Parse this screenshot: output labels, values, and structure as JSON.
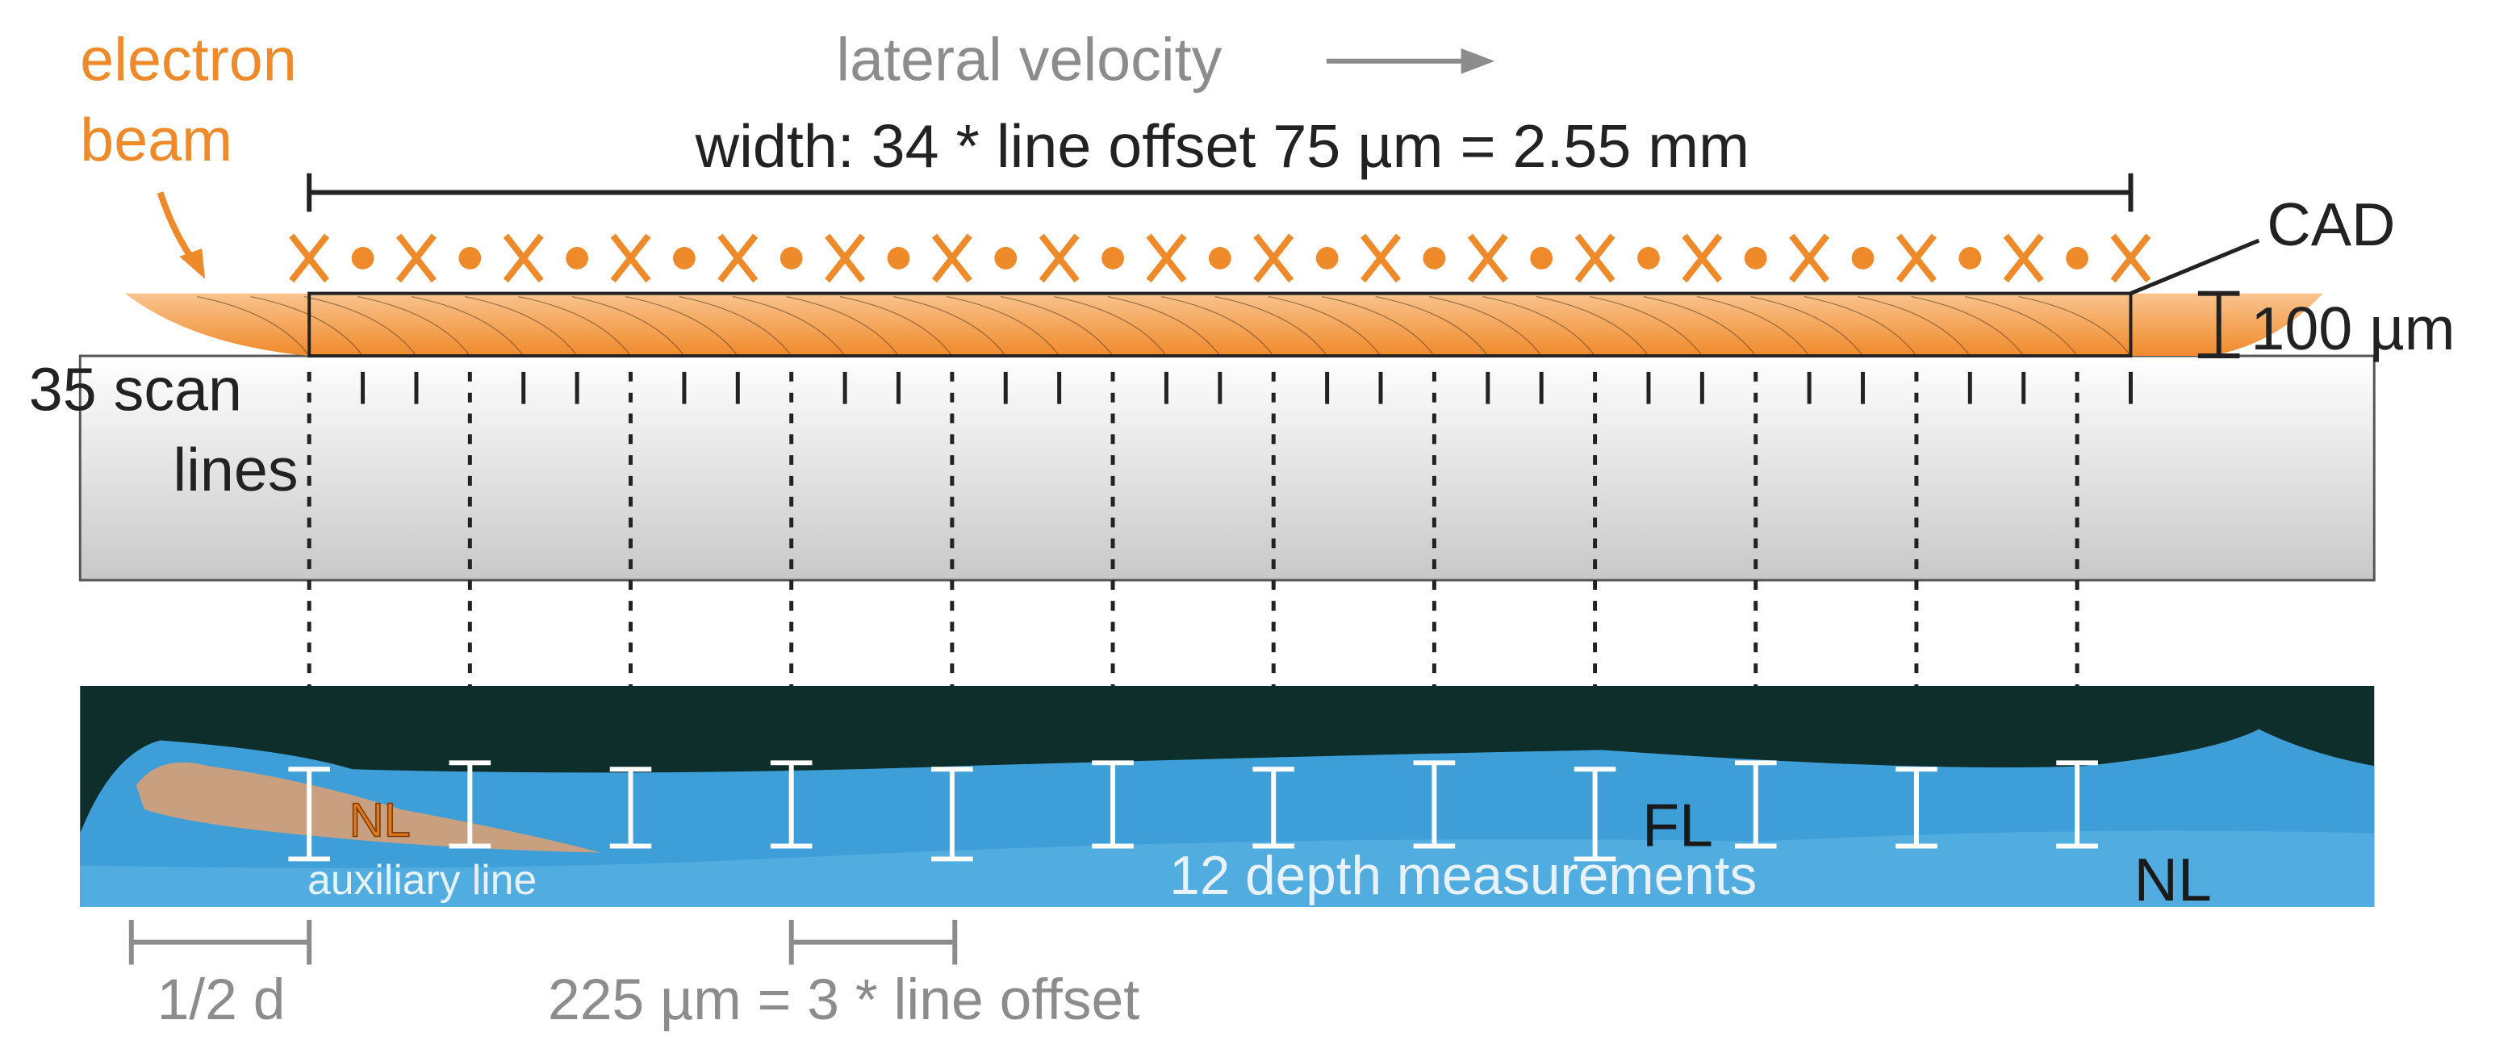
{
  "electron_beam": [
    "electron",
    "beam"
  ],
  "lateral_velocity": "lateral velocity",
  "width_label": "width: 34 * line offset 75 µm = 2.55 mm",
  "cad": "CAD",
  "thickness": "100 µm",
  "scan_lines": [
    "35 scan",
    "lines"
  ],
  "micrograph": {
    "nl_left": "NL",
    "auxiliary_line": "auxiliary line",
    "depth_measurements": "12 depth measurements",
    "fl": "FL",
    "nl_right": "NL"
  },
  "half_d": "1/2 d",
  "offset_label": "225 µm = 3 * line offset"
}
